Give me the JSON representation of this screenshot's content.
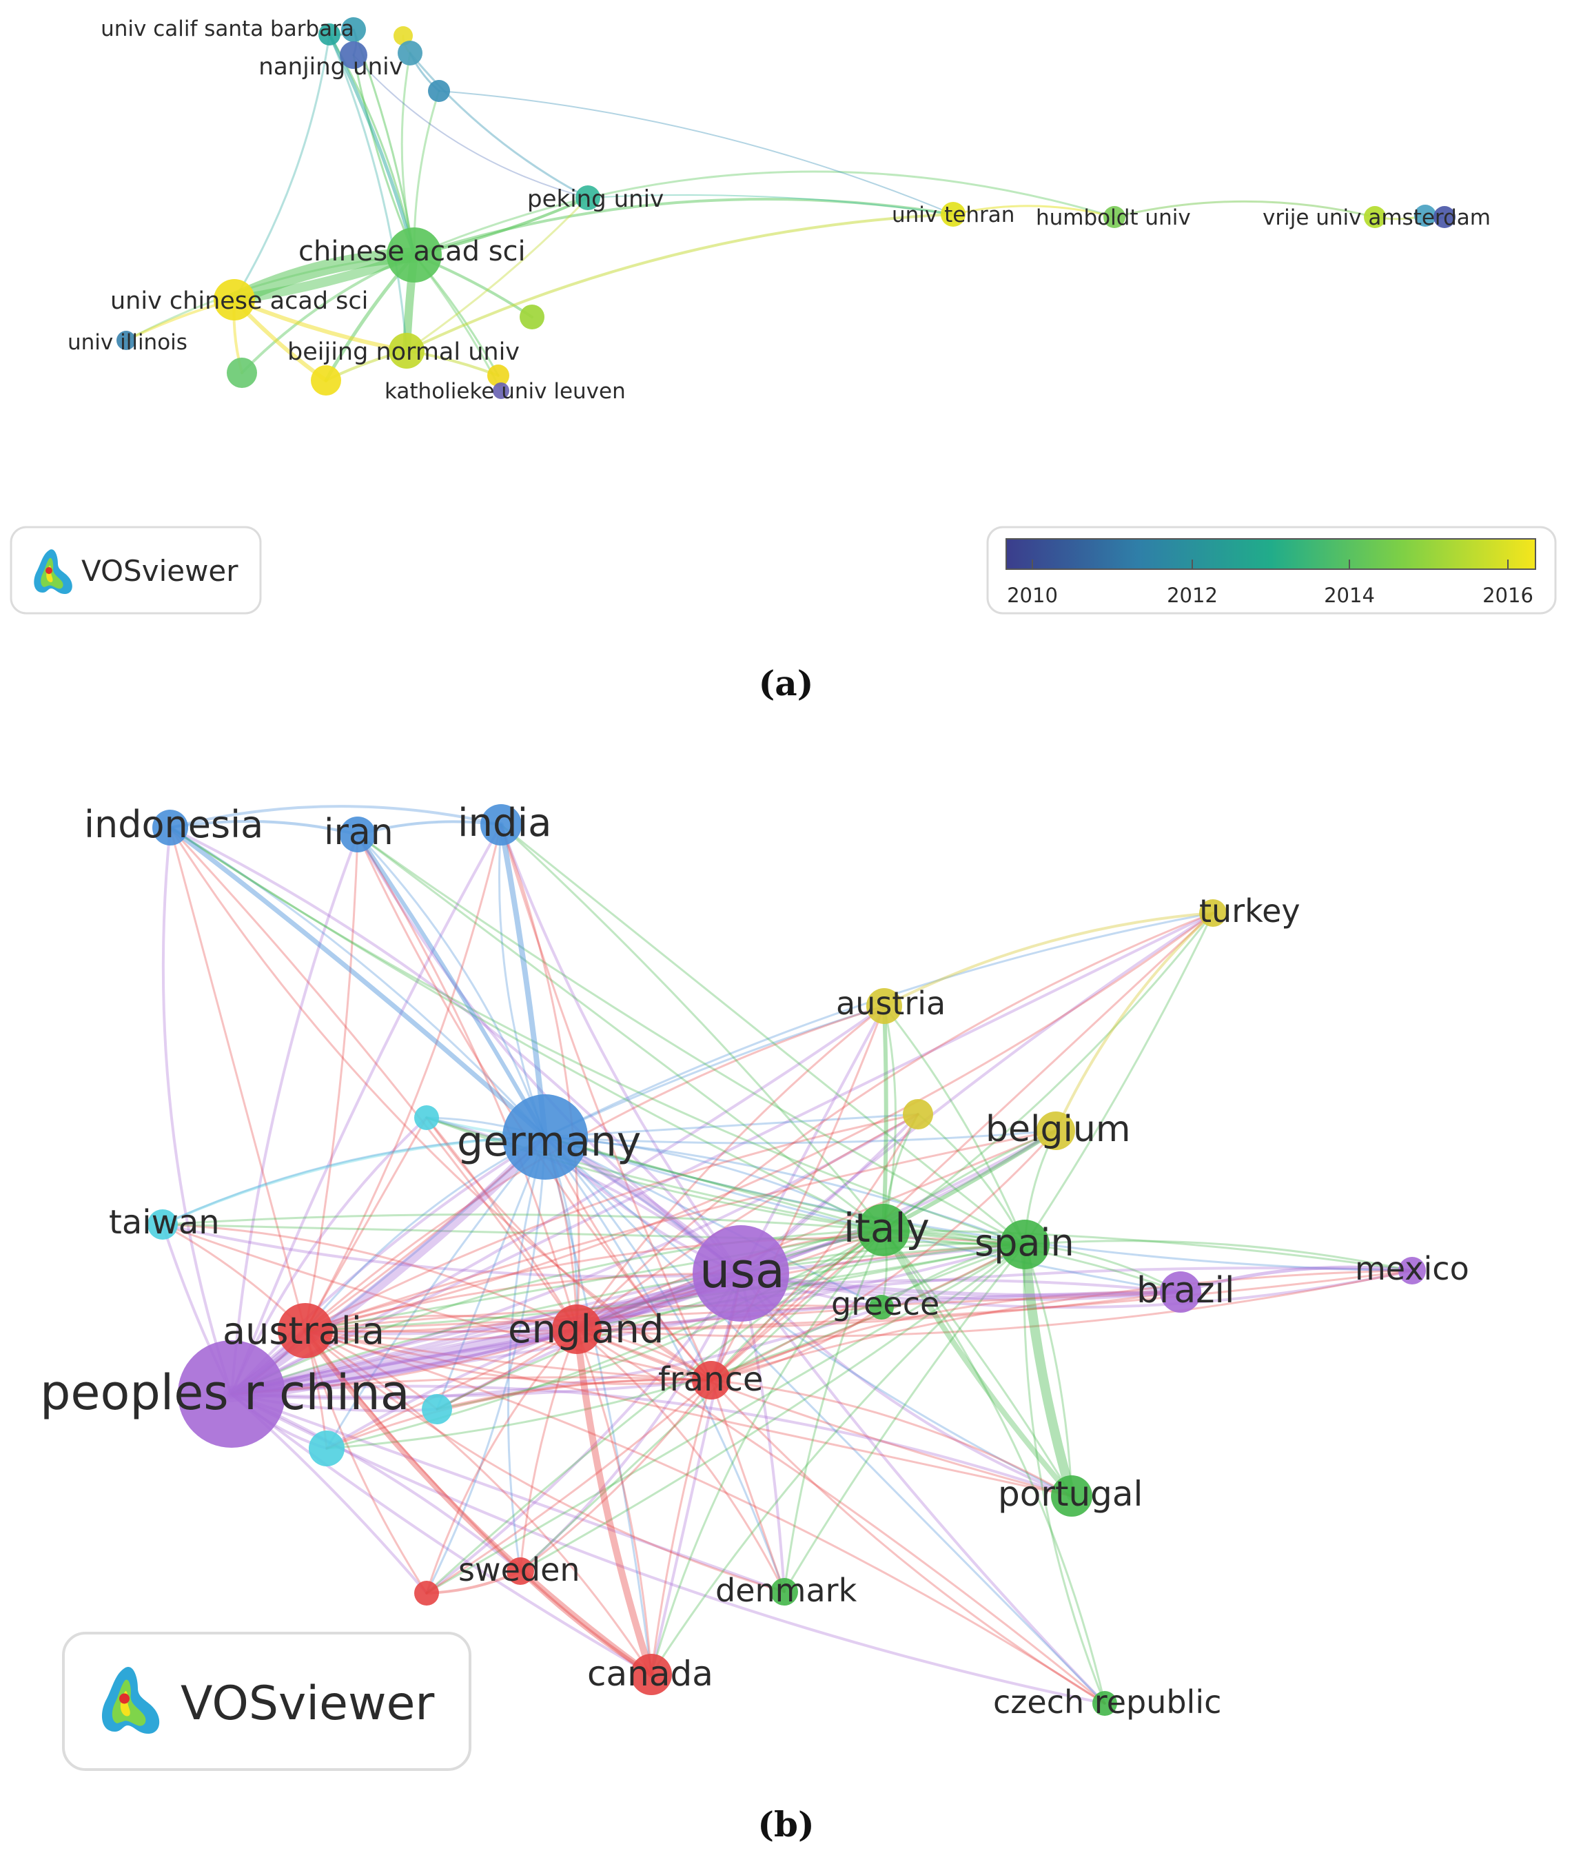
{
  "figure_a": {
    "caption": "(a)",
    "nodes": [
      {
        "label": "univ calif santa barbara",
        "color": "#3f9fb5"
      },
      {
        "label": "nanjing univ",
        "color": "#4f6fb8"
      },
      {
        "label": "",
        "color": "#2aa9a0"
      },
      {
        "label": "",
        "color": "#e8dd30"
      },
      {
        "label": "",
        "color": "#4aa0bb"
      },
      {
        "label": "",
        "color": "#3f93b8"
      },
      {
        "label": "peking univ",
        "color": "#37b89b"
      },
      {
        "label": "chinese acad sci",
        "color": "#5cc75d"
      },
      {
        "label": "univ chinese acad sci",
        "color": "#f0de20"
      },
      {
        "label": "univ illinois",
        "color": "#3d86b0"
      },
      {
        "label": "beijing normal univ",
        "color": "#c3d92f"
      },
      {
        "label": "",
        "color": "#9fd63a"
      },
      {
        "label": "",
        "color": "#6bcb73"
      },
      {
        "label": "",
        "color": "#f2e021"
      },
      {
        "label": "",
        "color": "#f0d820"
      },
      {
        "label": "katholieke univ leuven",
        "color": "#6a64b3"
      },
      {
        "label": "univ tehran",
        "color": "#e3e21e"
      },
      {
        "label": "humboldt univ",
        "color": "#7ccc58"
      },
      {
        "label": "vrije univ amsterdam",
        "color": "#b4dc2e"
      },
      {
        "label": "",
        "color": "#4aa2c2"
      },
      {
        "label": "",
        "color": "#4b58a8"
      }
    ],
    "brand": {
      "label": "VOSviewer"
    },
    "color_scale": {
      "ticks": [
        "2010",
        "2012",
        "2014",
        "2016"
      ],
      "colors": [
        "#3b3d8c",
        "#2f7fa8",
        "#21ac8a",
        "#7fd045",
        "#f5e61c"
      ]
    }
  },
  "figure_b": {
    "caption": "(b)",
    "nodes": [
      {
        "label": "indonesia",
        "color": "#4a90d9"
      },
      {
        "label": "iran",
        "color": "#4a90d9"
      },
      {
        "label": "india",
        "color": "#4a90d9"
      },
      {
        "label": "turkey",
        "color": "#d6c835"
      },
      {
        "label": "austria",
        "color": "#d6c835"
      },
      {
        "label": "",
        "color": "#d6c835"
      },
      {
        "label": "belgium",
        "color": "#d6c835"
      },
      {
        "label": "",
        "color": "#4fd0e0"
      },
      {
        "label": "germany",
        "color": "#4a90d9"
      },
      {
        "label": "taiwan",
        "color": "#4fd0e0"
      },
      {
        "label": "italy",
        "color": "#42b649"
      },
      {
        "label": "spain",
        "color": "#42b649"
      },
      {
        "label": "usa",
        "color": "#a66ad6"
      },
      {
        "label": "greece",
        "color": "#42b649"
      },
      {
        "label": "brazil",
        "color": "#a66ad6"
      },
      {
        "label": "mexico",
        "color": "#a66ad6"
      },
      {
        "label": "australia",
        "color": "#e64545"
      },
      {
        "label": "england",
        "color": "#e64545"
      },
      {
        "label": "france",
        "color": "#e64545"
      },
      {
        "label": "peoples r china",
        "color": "#a66ad6"
      },
      {
        "label": "",
        "color": "#4fd0e0"
      },
      {
        "label": "",
        "color": "#4fd0e0"
      },
      {
        "label": "portugal",
        "color": "#42b649"
      },
      {
        "label": "sweden",
        "color": "#e64545"
      },
      {
        "label": "",
        "color": "#e64545"
      },
      {
        "label": "denmark",
        "color": "#42b649"
      },
      {
        "label": "canada",
        "color": "#e64545"
      },
      {
        "label": "czech republic",
        "color": "#42b649"
      }
    ],
    "brand": {
      "label": "VOSviewer"
    }
  }
}
